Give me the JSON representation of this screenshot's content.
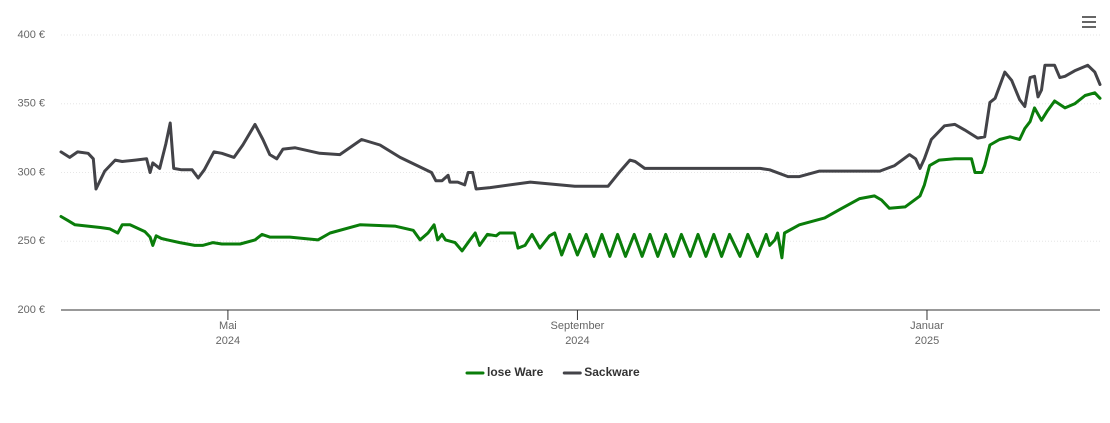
{
  "chart_data": {
    "type": "line",
    "xlim": [
      2.09,
      13.98
    ],
    "xticks": [
      {
        "value": 4,
        "label": "Mai",
        "sublabel": "2024"
      },
      {
        "value": 8,
        "label": "September",
        "sublabel": "2024"
      },
      {
        "value": 12,
        "label": "Januar",
        "sublabel": "2025"
      }
    ],
    "ylim": [
      200,
      400
    ],
    "yticks": [
      {
        "value": 200,
        "label": "200 €"
      },
      {
        "value": 250,
        "label": "250 €"
      },
      {
        "value": 300,
        "label": "300 €"
      },
      {
        "value": 350,
        "label": "350 €"
      },
      {
        "value": 400,
        "label": "400 €"
      }
    ],
    "grid": true,
    "legend": "bottom",
    "series": [
      {
        "name": "lose Ware",
        "color": "#0a7d0a",
        "x": [
          2.09,
          2.17,
          2.25,
          2.54,
          2.65,
          2.74,
          2.79,
          2.88,
          3.05,
          3.11,
          3.14,
          3.18,
          3.24,
          3.31,
          3.45,
          3.62,
          3.71,
          3.83,
          3.93,
          4.14,
          4.31,
          4.39,
          4.48,
          4.71,
          5.03,
          5.17,
          5.51,
          5.91,
          6.12,
          6.2,
          6.29,
          6.36,
          6.4,
          6.45,
          6.49,
          6.6,
          6.68,
          6.77,
          6.83,
          6.88,
          6.97,
          7.07,
          7.11,
          7.28,
          7.32,
          7.4,
          7.48,
          7.57,
          7.68,
          7.74,
          7.82,
          7.91,
          8.0,
          8.1,
          8.19,
          8.28,
          8.37,
          8.46,
          8.55,
          8.65,
          8.74,
          8.83,
          8.92,
          9.01,
          9.1,
          9.19,
          9.29,
          9.38,
          9.47,
          9.56,
          9.65,
          9.74,
          9.86,
          9.95,
          10.06,
          10.16,
          10.2,
          10.26,
          10.29,
          10.34,
          10.37,
          10.54,
          10.83,
          11.0,
          11.23,
          11.4,
          11.48,
          11.57,
          11.75,
          11.92,
          11.97,
          12.03,
          12.14,
          12.32,
          12.51,
          12.55,
          12.63,
          12.66,
          12.72,
          12.83,
          12.95,
          13.06,
          13.12,
          13.18,
          13.23,
          13.31,
          13.38,
          13.46,
          13.58,
          13.69,
          13.81,
          13.92,
          13.98
        ],
        "values": [
          268,
          265,
          262,
          260,
          259,
          256,
          262,
          262,
          257,
          253,
          247,
          254,
          252,
          251,
          249,
          247,
          247,
          249,
          248,
          248,
          251,
          255,
          253,
          253,
          251,
          256,
          262,
          261,
          258,
          251,
          256,
          262,
          251,
          255,
          251,
          249,
          243,
          251,
          256,
          247,
          255,
          254,
          256,
          256,
          245,
          247,
          255,
          245,
          254,
          256,
          240,
          255,
          240,
          255,
          239,
          255,
          239,
          255,
          239,
          255,
          239,
          255,
          239,
          255,
          239,
          255,
          239,
          255,
          239,
          255,
          239,
          255,
          239,
          255,
          239,
          255,
          247,
          251,
          256,
          238,
          256,
          262,
          267,
          273,
          281,
          283,
          280,
          274,
          275,
          283,
          291,
          305,
          309,
          310,
          310,
          300,
          300,
          305,
          320,
          324,
          326,
          324,
          332,
          337,
          347,
          338,
          345,
          352,
          347,
          350,
          356,
          358,
          354
        ]
      },
      {
        "name": "Sackware",
        "color": "#434348",
        "x": [
          2.09,
          2.19,
          2.28,
          2.4,
          2.46,
          2.49,
          2.59,
          2.71,
          2.79,
          2.94,
          3.07,
          3.11,
          3.14,
          3.22,
          3.29,
          3.34,
          3.38,
          3.47,
          3.59,
          3.66,
          3.73,
          3.84,
          3.93,
          4.07,
          4.17,
          4.31,
          4.4,
          4.48,
          4.56,
          4.63,
          4.77,
          5.05,
          5.28,
          5.53,
          5.74,
          5.97,
          6.2,
          6.33,
          6.38,
          6.45,
          6.52,
          6.54,
          6.63,
          6.71,
          6.75,
          6.8,
          6.84,
          7.0,
          7.46,
          7.97,
          8.35,
          8.49,
          8.6,
          8.66,
          8.77,
          9.4,
          10.09,
          10.2,
          10.41,
          10.54,
          10.77,
          11.46,
          11.63,
          11.8,
          11.87,
          11.92,
          11.97,
          12.05,
          12.2,
          12.32,
          12.43,
          12.58,
          12.66,
          12.72,
          12.78,
          12.89,
          12.97,
          13.06,
          13.12,
          13.18,
          13.23,
          13.27,
          13.31,
          13.35,
          13.46,
          13.52,
          13.58,
          13.69,
          13.84,
          13.92,
          13.98
        ],
        "values": [
          315,
          311,
          315,
          314,
          310,
          288,
          301,
          309,
          308,
          309,
          310,
          300,
          307,
          303,
          321,
          336,
          303,
          302,
          302,
          296,
          302,
          315,
          314,
          311,
          320,
          335,
          324,
          313,
          310,
          317,
          318,
          314,
          313,
          324,
          320,
          311,
          304,
          300,
          294,
          294,
          298,
          293,
          293,
          291,
          300,
          300,
          288,
          289,
          293,
          290,
          290,
          301,
          309,
          308,
          303,
          303,
          303,
          302,
          297,
          297,
          301,
          301,
          305,
          313,
          310,
          303,
          310,
          324,
          334,
          335,
          331,
          325,
          326,
          351,
          354,
          373,
          367,
          353,
          348,
          369,
          370,
          355,
          360,
          378,
          378,
          369,
          370,
          374,
          378,
          373,
          364
        ]
      }
    ]
  }
}
